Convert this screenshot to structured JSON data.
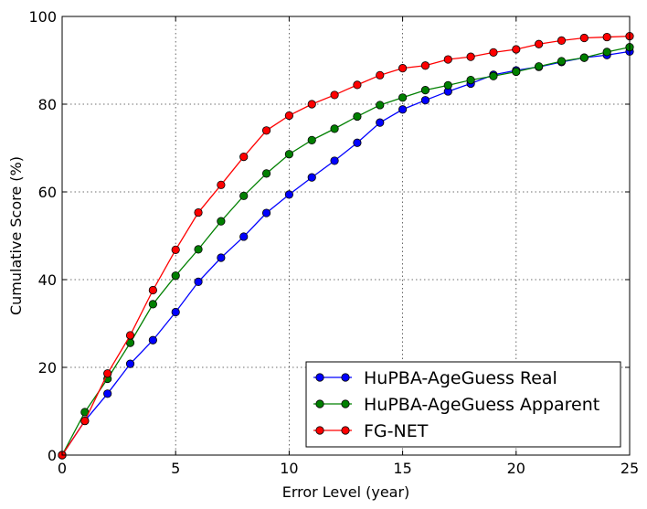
{
  "chart_data": {
    "type": "line",
    "title": "",
    "xlabel": "Error Level (year)",
    "ylabel": "Cumulative Score (%)",
    "xlim": [
      0,
      25
    ],
    "ylim": [
      0,
      100
    ],
    "xticks": [
      0,
      5,
      10,
      15,
      20,
      25
    ],
    "yticks": [
      0,
      20,
      40,
      60,
      80,
      100
    ],
    "grid": true,
    "legend_position": "bottom-right",
    "x": [
      0,
      1,
      2,
      3,
      4,
      5,
      6,
      7,
      8,
      9,
      10,
      11,
      12,
      13,
      14,
      15,
      16,
      17,
      18,
      19,
      20,
      21,
      22,
      23,
      24,
      25
    ],
    "series": [
      {
        "name": "HuPBA-AgeGuess Real",
        "color": "#0000ff",
        "values": [
          0,
          7.8,
          14,
          20.8,
          26.2,
          32.6,
          39.5,
          45,
          49.8,
          55.2,
          59.4,
          63.3,
          67.1,
          71.2,
          75.8,
          78.8,
          80.9,
          82.9,
          84.7,
          86.7,
          87.7,
          88.5,
          89.6,
          90.6,
          91.2,
          92
        ]
      },
      {
        "name": "HuPBA-AgeGuess Apparent",
        "color": "#008000",
        "values": [
          0,
          9.8,
          17.4,
          25.6,
          34.4,
          40.9,
          46.9,
          53.3,
          59.1,
          64.2,
          68.6,
          71.8,
          74.4,
          77.2,
          79.8,
          81.5,
          83.2,
          84.3,
          85.5,
          86.4,
          87.4,
          88.6,
          89.8,
          90.6,
          91.9,
          93
        ]
      },
      {
        "name": "FG-NET",
        "color": "#ff0000",
        "values": [
          0,
          7.8,
          18.6,
          27.3,
          37.6,
          46.8,
          55.3,
          61.6,
          68,
          74,
          77.4,
          80,
          82.1,
          84.4,
          86.6,
          88.2,
          88.8,
          90.2,
          90.8,
          91.8,
          92.5,
          93.7,
          94.5,
          95.1,
          95.3,
          95.5
        ]
      }
    ]
  }
}
